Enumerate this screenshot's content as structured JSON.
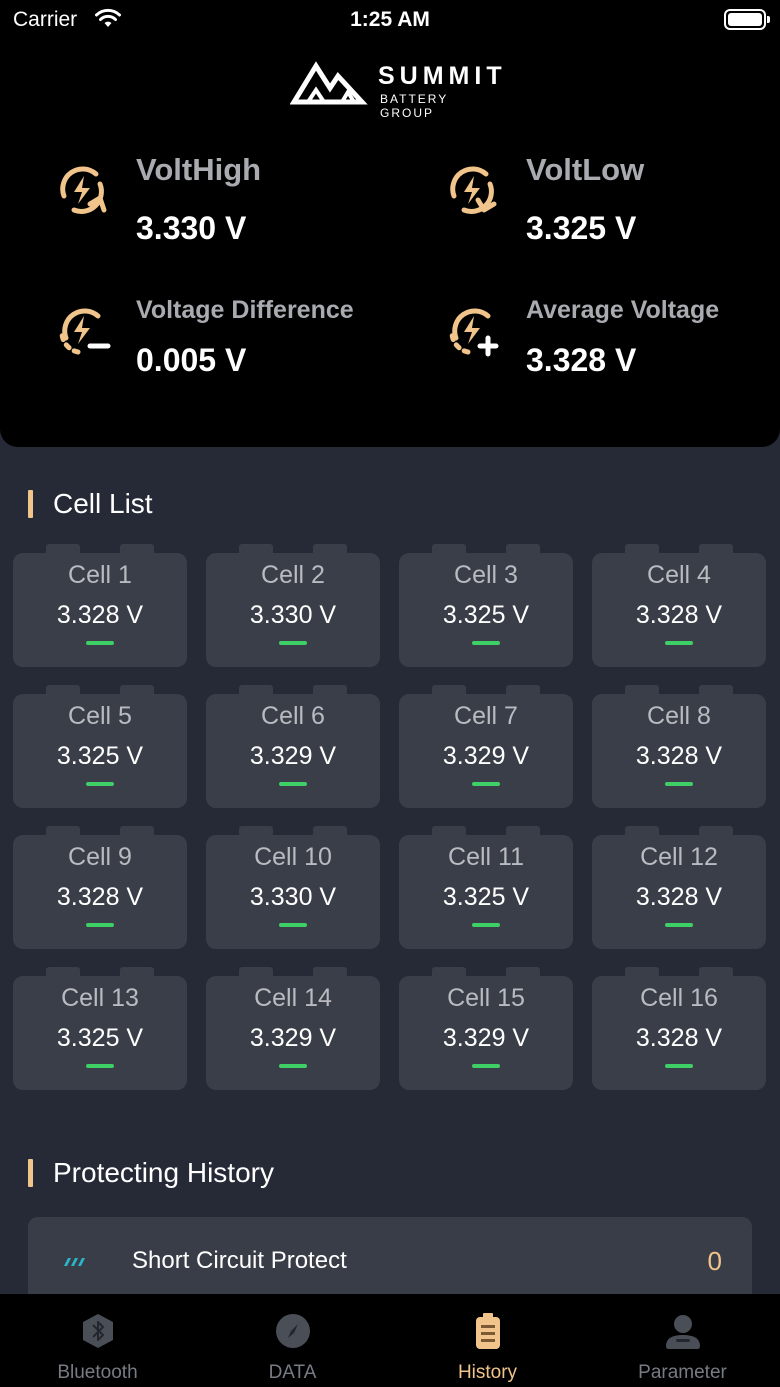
{
  "status_bar": {
    "carrier": "Carrier",
    "time": "1:25 AM"
  },
  "brand": {
    "name": "SUMMIT",
    "subtitle": "BATTERY GROUP"
  },
  "stats": [
    {
      "label": "VoltHigh",
      "value": "3.330 V",
      "icon": "lightning-cycle-up-icon"
    },
    {
      "label": "VoltLow",
      "value": "3.325 V",
      "icon": "lightning-cycle-down-icon"
    },
    {
      "label": "Voltage Difference",
      "value": "0.005 V",
      "icon": "lightning-minus-icon"
    },
    {
      "label": "Average Voltage",
      "value": "3.328 V",
      "icon": "lightning-plus-icon"
    }
  ],
  "cell_list": {
    "title": "Cell List",
    "cells": [
      {
        "name": "Cell 1",
        "voltage": "3.328 V"
      },
      {
        "name": "Cell 2",
        "voltage": "3.330 V"
      },
      {
        "name": "Cell 3",
        "voltage": "3.325 V"
      },
      {
        "name": "Cell 4",
        "voltage": "3.328 V"
      },
      {
        "name": "Cell 5",
        "voltage": "3.325 V"
      },
      {
        "name": "Cell 6",
        "voltage": "3.329 V"
      },
      {
        "name": "Cell 7",
        "voltage": "3.329 V"
      },
      {
        "name": "Cell 8",
        "voltage": "3.328 V"
      },
      {
        "name": "Cell 9",
        "voltage": "3.328 V"
      },
      {
        "name": "Cell 10",
        "voltage": "3.330 V"
      },
      {
        "name": "Cell 11",
        "voltage": "3.325 V"
      },
      {
        "name": "Cell 12",
        "voltage": "3.328 V"
      },
      {
        "name": "Cell 13",
        "voltage": "3.325 V"
      },
      {
        "name": "Cell 14",
        "voltage": "3.329 V"
      },
      {
        "name": "Cell 15",
        "voltage": "3.329 V"
      },
      {
        "name": "Cell 16",
        "voltage": "3.328 V"
      }
    ]
  },
  "protecting_history": {
    "title": "Protecting History",
    "items": [
      {
        "label": "Short Circuit Protect",
        "count": "0",
        "icon": "short-circuit-icon"
      }
    ]
  },
  "tabbar": [
    {
      "label": "Bluetooth",
      "icon": "bluetooth-icon",
      "active": false
    },
    {
      "label": "DATA",
      "icon": "compass-icon",
      "active": false
    },
    {
      "label": "History",
      "icon": "battery-icon",
      "active": true
    },
    {
      "label": "Parameter",
      "icon": "user-icon",
      "active": false
    }
  ],
  "colors": {
    "accent": "#f0c48a",
    "ok": "#3fcf67",
    "card": "#3a3e48",
    "bg": "#252a36"
  }
}
